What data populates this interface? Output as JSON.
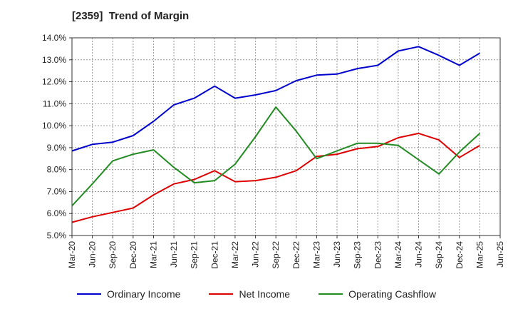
{
  "chart_data": {
    "type": "line",
    "title": "[2359]  Trend of Margin",
    "xlabel": "",
    "ylabel": "",
    "categories": [
      "Mar-20",
      "Jun-20",
      "Sep-20",
      "Dec-20",
      "Mar-21",
      "Jun-21",
      "Sep-21",
      "Dec-21",
      "Mar-22",
      "Jun-22",
      "Sep-22",
      "Dec-22",
      "Mar-23",
      "Jun-23",
      "Sep-23",
      "Dec-23",
      "Mar-24",
      "Jun-24",
      "Sep-24",
      "Dec-24",
      "Mar-25",
      "Jun-25"
    ],
    "y_ticks": [
      "5.0%",
      "6.0%",
      "7.0%",
      "8.0%",
      "9.0%",
      "10.0%",
      "11.0%",
      "12.0%",
      "13.0%",
      "14.0%"
    ],
    "ylim": [
      5.0,
      14.0
    ],
    "grid": true,
    "legend_position": "bottom",
    "series": [
      {
        "name": "Ordinary Income",
        "color": "#0000cc",
        "values": [
          8.85,
          9.15,
          9.25,
          9.55,
          10.2,
          10.95,
          11.25,
          11.8,
          11.25,
          11.4,
          11.6,
          12.05,
          12.3,
          12.35,
          12.6,
          12.75,
          13.4,
          13.6,
          13.2,
          12.75,
          13.3,
          null
        ]
      },
      {
        "name": "Net Income",
        "color": "#dd0000",
        "values": [
          5.6,
          5.85,
          6.05,
          6.25,
          6.85,
          7.35,
          7.55,
          7.95,
          7.45,
          7.5,
          7.65,
          7.95,
          8.6,
          8.7,
          8.95,
          9.05,
          9.45,
          9.65,
          9.35,
          8.55,
          9.1,
          null
        ]
      },
      {
        "name": "Operating Cashflow",
        "color": "#228b22",
        "values": [
          6.35,
          7.35,
          8.4,
          8.7,
          8.9,
          8.1,
          7.4,
          7.5,
          8.25,
          9.5,
          10.85,
          9.75,
          8.5,
          8.85,
          9.2,
          9.2,
          9.1,
          8.45,
          7.8,
          8.8,
          9.65,
          null
        ]
      }
    ]
  }
}
